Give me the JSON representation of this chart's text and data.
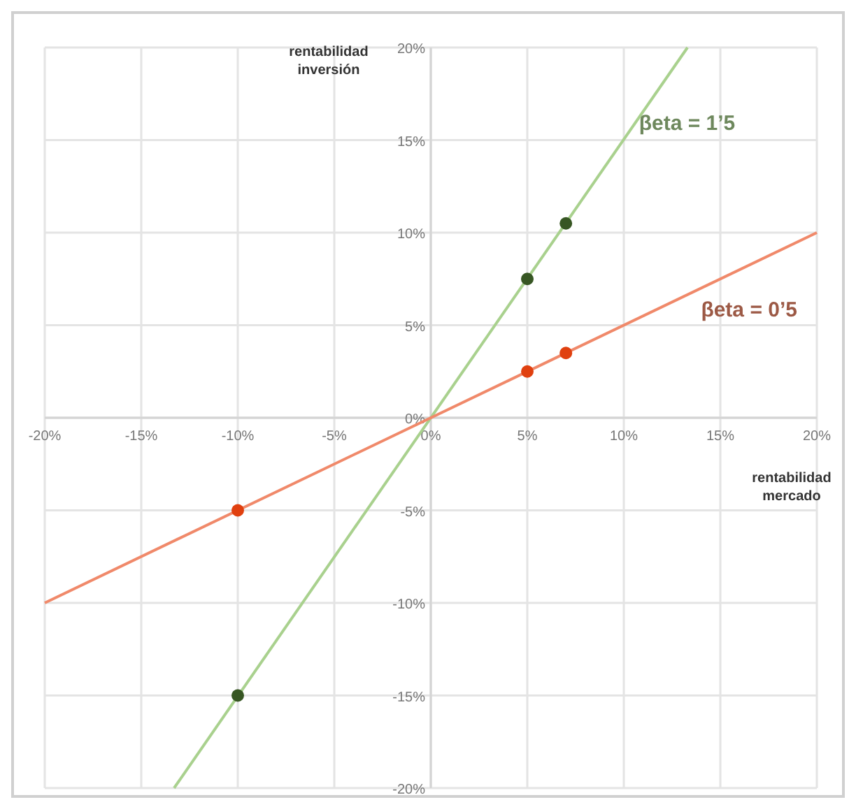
{
  "chart_data": {
    "type": "line",
    "xlabel": "rentabilidad mercado",
    "ylabel": "rentabilidad inversión",
    "xlim": [
      -20,
      20
    ],
    "ylim": [
      -20,
      20
    ],
    "xticks": [
      {
        "value": -20,
        "label": "-20%"
      },
      {
        "value": -15,
        "label": "-15%"
      },
      {
        "value": -10,
        "label": "-10%"
      },
      {
        "value": -5,
        "label": "-5%"
      },
      {
        "value": 0,
        "label": "0%"
      },
      {
        "value": 5,
        "label": "5%"
      },
      {
        "value": 10,
        "label": "10%"
      },
      {
        "value": 15,
        "label": "15%"
      },
      {
        "value": 20,
        "label": "20%"
      }
    ],
    "yticks": [
      {
        "value": -20,
        "label": "-20%"
      },
      {
        "value": -15,
        "label": "-15%"
      },
      {
        "value": -10,
        "label": "-10%"
      },
      {
        "value": -5,
        "label": "-5%"
      },
      {
        "value": 0,
        "label": "0%"
      },
      {
        "value": 5,
        "label": "5%"
      },
      {
        "value": 10,
        "label": "10%"
      },
      {
        "value": 15,
        "label": "15%"
      },
      {
        "value": 20,
        "label": "20%"
      }
    ],
    "grid": true,
    "series": [
      {
        "name": "βeta = 1’5",
        "color": "#a9d18e",
        "x": [
          -13.3,
          13.3
        ],
        "values": [
          -20,
          20
        ],
        "marker": "none"
      },
      {
        "name": "βeta = 0’5",
        "color": "#f0896a",
        "x": [
          -20,
          20
        ],
        "values": [
          -10,
          10
        ],
        "marker": "none"
      },
      {
        "type": "scatter",
        "color": "#375623",
        "x": [
          -10,
          5,
          7
        ],
        "values": [
          -15,
          7.5,
          10.5
        ],
        "marker": "circle"
      },
      {
        "type": "scatter",
        "color": "#e0400f",
        "x": [
          -10,
          5,
          7
        ],
        "values": [
          -5,
          2.5,
          3.5
        ],
        "marker": "circle"
      }
    ]
  }
}
